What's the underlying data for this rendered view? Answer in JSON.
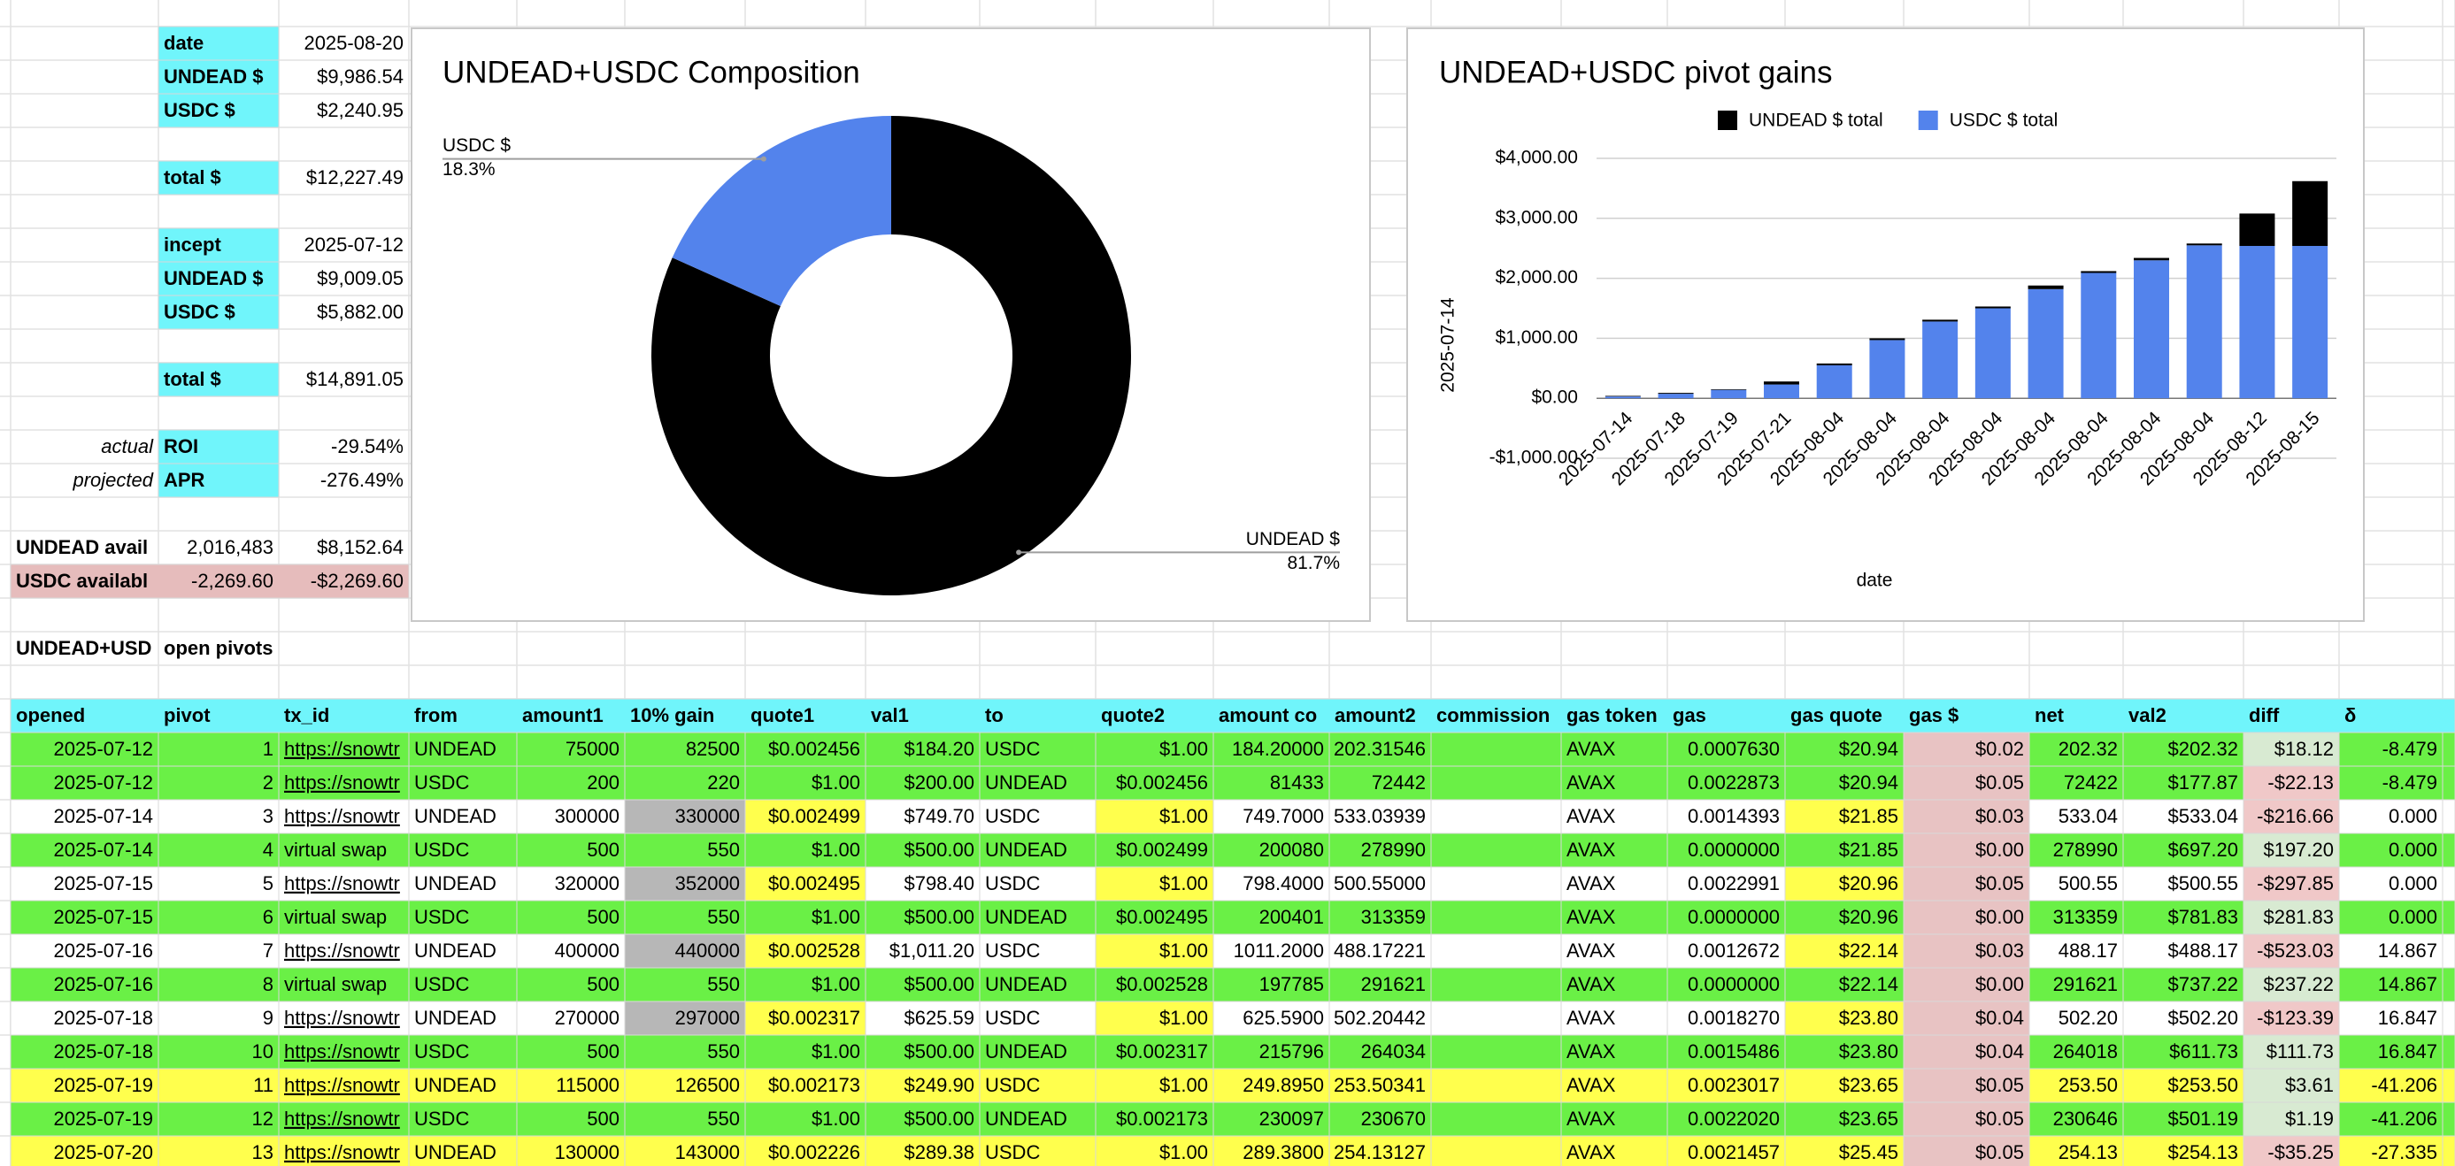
{
  "summary": [
    {
      "b": "date",
      "c": "2025-08-20"
    },
    {
      "b": "UNDEAD $",
      "c": "$9,986.54"
    },
    {
      "b": "USDC $",
      "c": "$2,240.95"
    },
    {
      "b": "total $",
      "c": "$12,227.49"
    },
    {
      "b": "incept",
      "c": "2025-07-12"
    },
    {
      "b": "UNDEAD $",
      "c": "$9,009.05"
    },
    {
      "b": "USDC $",
      "c": "$5,882.00"
    },
    {
      "b": "total $",
      "c": "$14,891.05"
    },
    {
      "a": "actual",
      "b": "ROI",
      "c": "-29.54%"
    },
    {
      "a": "projected",
      "b": "APR",
      "c": "-276.49%"
    },
    {
      "a": "UNDEAD avail",
      "b": "2,016,483",
      "c": "$8,152.64"
    },
    {
      "a": "USDC availabl",
      "b": "-2,269.60",
      "c": "-$2,269.60"
    }
  ],
  "section": {
    "a": "UNDEAD+USD",
    "b": "open pivots"
  },
  "table": {
    "headers": [
      "opened",
      "pivot",
      "tx_id",
      "from",
      "amount1",
      "10% gain",
      "quote1",
      "val1",
      "to",
      "quote2",
      "amount co",
      "amount2",
      "commission",
      "gas token",
      "gas",
      "gas quote",
      "gas $",
      "net",
      "val2",
      "diff",
      "δ"
    ],
    "rows": [
      [
        "2025-07-12",
        "1",
        "https://snowtr",
        "UNDEAD",
        "75000",
        "82500",
        "$0.002456",
        "$184.20",
        "USDC",
        "$1.00",
        "184.20000",
        "202.31546",
        null,
        "AVAX",
        "0.0007630",
        "$20.94",
        "$0.02",
        "202.32",
        "$202.32",
        "$18.12",
        "-8.479"
      ],
      [
        "2025-07-12",
        "2",
        "https://snowtr",
        "USDC",
        "200",
        "220",
        "$1.00",
        "$200.00",
        "UNDEAD",
        "$0.002456",
        "81433",
        "72442",
        null,
        "AVAX",
        "0.0022873",
        "$20.94",
        "$0.05",
        "72422",
        "$177.87",
        "-$22.13",
        "-8.479"
      ],
      [
        "2025-07-14",
        "3",
        "https://snowtr",
        "UNDEAD",
        "300000",
        "330000",
        "$0.002499",
        "$749.70",
        "USDC",
        "$1.00",
        "749.7000",
        "533.03939",
        null,
        "AVAX",
        "0.0014393",
        "$21.85",
        "$0.03",
        "533.04",
        "$533.04",
        "-$216.66",
        "0.000"
      ],
      [
        "2025-07-14",
        "4",
        "virtual swap",
        "USDC",
        "500",
        "550",
        "$1.00",
        "$500.00",
        "UNDEAD",
        "$0.002499",
        "200080",
        "278990",
        null,
        "AVAX",
        "0.0000000",
        "$21.85",
        "$0.00",
        "278990",
        "$697.20",
        "$197.20",
        "0.000"
      ],
      [
        "2025-07-15",
        "5",
        "https://snowtr",
        "UNDEAD",
        "320000",
        "352000",
        "$0.002495",
        "$798.40",
        "USDC",
        "$1.00",
        "798.4000",
        "500.55000",
        null,
        "AVAX",
        "0.0022991",
        "$20.96",
        "$0.05",
        "500.55",
        "$500.55",
        "-$297.85",
        "0.000"
      ],
      [
        "2025-07-15",
        "6",
        "virtual swap",
        "USDC",
        "500",
        "550",
        "$1.00",
        "$500.00",
        "UNDEAD",
        "$0.002495",
        "200401",
        "313359",
        null,
        "AVAX",
        "0.0000000",
        "$20.96",
        "$0.00",
        "313359",
        "$781.83",
        "$281.83",
        "0.000"
      ],
      [
        "2025-07-16",
        "7",
        "https://snowtr",
        "UNDEAD",
        "400000",
        "440000",
        "$0.002528",
        "$1,011.20",
        "USDC",
        "$1.00",
        "1011.2000",
        "488.17221",
        null,
        "AVAX",
        "0.0012672",
        "$22.14",
        "$0.03",
        "488.17",
        "$488.17",
        "-$523.03",
        "14.867"
      ],
      [
        "2025-07-16",
        "8",
        "virtual swap",
        "USDC",
        "500",
        "550",
        "$1.00",
        "$500.00",
        "UNDEAD",
        "$0.002528",
        "197785",
        "291621",
        null,
        "AVAX",
        "0.0000000",
        "$22.14",
        "$0.00",
        "291621",
        "$737.22",
        "$237.22",
        "14.867"
      ],
      [
        "2025-07-18",
        "9",
        "https://snowtr",
        "UNDEAD",
        "270000",
        "297000",
        "$0.002317",
        "$625.59",
        "USDC",
        "$1.00",
        "625.5900",
        "502.20442",
        null,
        "AVAX",
        "0.0018270",
        "$23.80",
        "$0.04",
        "502.20",
        "$502.20",
        "-$123.39",
        "16.847"
      ],
      [
        "2025-07-18",
        "10",
        "https://snowtr",
        "USDC",
        "500",
        "550",
        "$1.00",
        "$500.00",
        "UNDEAD",
        "$0.002317",
        "215796",
        "264034",
        null,
        "AVAX",
        "0.0015486",
        "$23.80",
        "$0.04",
        "264018",
        "$611.73",
        "$111.73",
        "16.847"
      ],
      [
        "2025-07-19",
        "11",
        "https://snowtr",
        "UNDEAD",
        "115000",
        "126500",
        "$0.002173",
        "$249.90",
        "USDC",
        "$1.00",
        "249.8950",
        "253.50341",
        null,
        "AVAX",
        "0.0023017",
        "$23.65",
        "$0.05",
        "253.50",
        "$253.50",
        "$3.61",
        "-41.206"
      ],
      [
        "2025-07-19",
        "12",
        "https://snowtr",
        "USDC",
        "500",
        "550",
        "$1.00",
        "$500.00",
        "UNDEAD",
        "$0.002173",
        "230097",
        "230670",
        null,
        "AVAX",
        "0.0022020",
        "$23.65",
        "$0.05",
        "230646",
        "$501.19",
        "$1.19",
        "-41.206"
      ],
      [
        "2025-07-20",
        "13",
        "https://snowtr",
        "UNDEAD",
        "130000",
        "143000",
        "$0.002226",
        "$289.38",
        "USDC",
        "$1.00",
        "289.3800",
        "254.13127",
        null,
        "AVAX",
        "0.0021457",
        "$25.45",
        "$0.05",
        "254.13",
        "$254.13",
        "-$35.25",
        "-27.335"
      ]
    ]
  },
  "chart_data": [
    {
      "type": "pie",
      "title": "UNDEAD+USDC Composition",
      "categories": [
        "UNDEAD $",
        "USDC $"
      ],
      "values": [
        81.7,
        18.3
      ],
      "value_labels": [
        "81.7%",
        "18.3%"
      ],
      "colors": [
        "#000000",
        "#5383ec"
      ]
    },
    {
      "type": "bar",
      "stacked": true,
      "title": "UNDEAD+USDC pivot gains",
      "xlabel": "date",
      "ylabel": "2025-07-14",
      "categories": [
        "2025-07-14",
        "2025-07-18",
        "2025-07-19",
        "2025-07-21",
        "2025-08-04",
        "2025-08-04",
        "2025-08-04",
        "2025-08-04",
        "2025-08-04",
        "2025-08-04",
        "2025-08-04",
        "2025-08-04",
        "2025-08-12",
        "2025-08-15"
      ],
      "series": [
        {
          "name": "UNDEAD $ total",
          "color": "#000000",
          "values": [
            10,
            15,
            10,
            50,
            30,
            30,
            30,
            30,
            60,
            30,
            40,
            30,
            540,
            1080
          ]
        },
        {
          "name": "USDC $ total",
          "color": "#5383ec",
          "values": [
            30,
            75,
            140,
            230,
            550,
            970,
            1280,
            1500,
            1820,
            2090,
            2300,
            2550,
            2540,
            2540
          ]
        }
      ],
      "ylim": [
        -1000,
        4000
      ],
      "yticks": [
        {
          "value": -1000,
          "label": "-$1,000.00"
        },
        {
          "value": 0,
          "label": "$0.00"
        },
        {
          "value": 1000,
          "label": "$1,000.00"
        },
        {
          "value": 2000,
          "label": "$2,000.00"
        },
        {
          "value": 3000,
          "label": "$3,000.00"
        },
        {
          "value": 4000,
          "label": "$4,000.00"
        }
      ],
      "grid": true,
      "legend": "top"
    }
  ]
}
